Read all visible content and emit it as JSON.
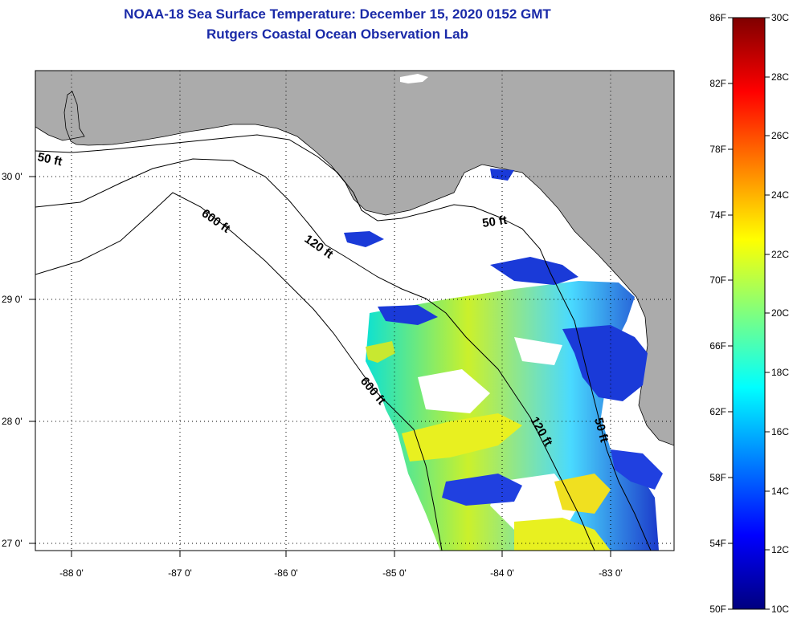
{
  "header": {
    "title": "NOAA-18 Sea Surface Temperature:  December 15, 2020 0152 GMT",
    "subtitle": "Rutgers Coastal Ocean Observation Lab"
  },
  "map": {
    "lon_ticks": [
      "-88 0'",
      "-87 0'",
      "-86 0'",
      "-85 0'",
      "-84 0'",
      "-83 0'"
    ],
    "lat_ticks": [
      "30 0'",
      "29 0'",
      "28 0'",
      "27 0'"
    ],
    "contour_labels": {
      "c50_west": "50 ft",
      "c50_east": "50 ft",
      "c50_south": "50 ft",
      "c120_north": "120 ft",
      "c120_south": "120 ft",
      "c600_north": "600 ft",
      "c600_south": "600 ft"
    }
  },
  "colorbar": {
    "fahrenheit": [
      "86F",
      "82F",
      "78F",
      "74F",
      "70F",
      "66F",
      "62F",
      "58F",
      "54F",
      "50F"
    ],
    "celsius": [
      "30C",
      "28C",
      "26C",
      "24C",
      "22C",
      "20C",
      "18C",
      "16C",
      "14C",
      "12C",
      "10C"
    ]
  },
  "colors": {
    "land": "#ababab",
    "ocean": "#ffffff",
    "title": "#1a2aa8",
    "scale_cold": "#00007f",
    "scale_cool": "#0000ff",
    "scale_mid_cool": "#00ffff",
    "scale_mid": "#7fff7f",
    "scale_mid_warm": "#ffff00",
    "scale_warm": "#ff0000",
    "scale_hot": "#7f0000"
  }
}
